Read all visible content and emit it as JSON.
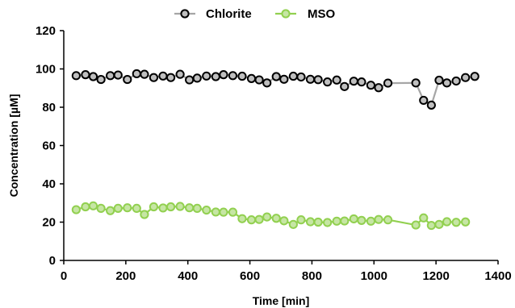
{
  "chart_data": {
    "type": "line",
    "xlabel": "Time [min]",
    "ylabel": "Concentration [µM]",
    "xlim": [
      0,
      1400
    ],
    "ylim": [
      0,
      120
    ],
    "xticks": [
      0,
      200,
      400,
      600,
      800,
      1000,
      1200,
      1400
    ],
    "yticks": [
      0,
      20,
      40,
      60,
      80,
      100,
      120
    ],
    "grid": false,
    "legend_position": "top-center",
    "series": [
      {
        "name": "Chlorite",
        "color": "#000000",
        "line_color": "#a6a6a6",
        "marker_fill": "#bfbfbf",
        "x": [
          40,
          70,
          95,
          120,
          150,
          175,
          205,
          235,
          260,
          290,
          320,
          345,
          375,
          405,
          430,
          460,
          490,
          515,
          545,
          575,
          605,
          630,
          655,
          685,
          710,
          740,
          765,
          795,
          820,
          850,
          880,
          905,
          935,
          960,
          990,
          1015,
          1045,
          1135,
          1160,
          1185,
          1210,
          1235,
          1265,
          1295,
          1325
        ],
        "y": [
          96.5,
          97,
          96,
          94.5,
          96.5,
          96.8,
          94.5,
          97.5,
          97.2,
          95.5,
          96.3,
          95.5,
          97.2,
          94.3,
          95.2,
          96.3,
          96,
          97,
          96.5,
          96.2,
          95,
          94.3,
          92.7,
          96,
          94.6,
          96.2,
          95.8,
          94.6,
          94.4,
          93.2,
          94.2,
          90.8,
          93.6,
          93.2,
          91.5,
          90.2,
          92.6,
          92.7,
          83.6,
          81.1,
          94.1,
          92.7,
          93.7,
          95.5,
          96.1
        ]
      },
      {
        "name": "MSO",
        "color": "#92d050",
        "line_color": "#92d050",
        "marker_fill": "#c6e6a4",
        "x": [
          40,
          70,
          95,
          120,
          150,
          175,
          205,
          235,
          260,
          290,
          320,
          345,
          375,
          405,
          430,
          460,
          490,
          515,
          545,
          575,
          605,
          630,
          655,
          685,
          710,
          740,
          765,
          795,
          820,
          850,
          880,
          905,
          935,
          960,
          990,
          1015,
          1045,
          1135,
          1160,
          1185,
          1210,
          1235,
          1265,
          1295
        ],
        "y": [
          26.5,
          28,
          28.5,
          27.2,
          26,
          27.2,
          27.5,
          27.2,
          24,
          28,
          27.4,
          28,
          28.2,
          27.5,
          27.2,
          26.3,
          25.3,
          25.2,
          25.2,
          21.8,
          21.2,
          21.4,
          22.7,
          22,
          20.7,
          18.8,
          21.2,
          20.2,
          20,
          19.8,
          20.5,
          20.6,
          21.7,
          20.9,
          20.5,
          21.4,
          21.2,
          18.5,
          22.2,
          18.3,
          18.8,
          20.2,
          19.9,
          20.1
        ]
      }
    ]
  }
}
